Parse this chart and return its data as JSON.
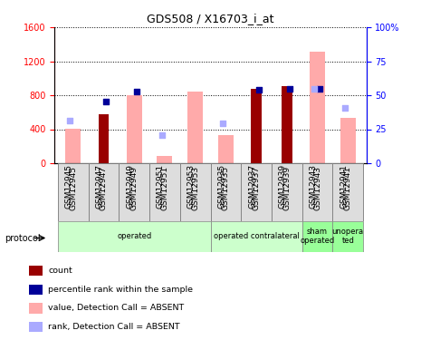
{
  "title": "GDS508 / X16703_i_at",
  "samples": [
    "GSM12945",
    "GSM12947",
    "GSM12949",
    "GSM12951",
    "GSM12953",
    "GSM12935",
    "GSM12937",
    "GSM12939",
    "GSM12943",
    "GSM12941"
  ],
  "count_values": [
    null,
    580,
    null,
    null,
    null,
    null,
    870,
    910,
    null,
    null
  ],
  "percentile_values": [
    null,
    730,
    840,
    null,
    null,
    null,
    860,
    880,
    870,
    null
  ],
  "absent_value": [
    410,
    null,
    800,
    90,
    840,
    330,
    null,
    null,
    1310,
    530
  ],
  "absent_rank": [
    500,
    null,
    null,
    330,
    null,
    470,
    null,
    null,
    870,
    650
  ],
  "proto_groups": [
    {
      "start": 0,
      "end": 4,
      "label": "operated",
      "color": "#ccffcc"
    },
    {
      "start": 5,
      "end": 7,
      "label": "operated contralateral",
      "color": "#ccffcc"
    },
    {
      "start": 8,
      "end": 8,
      "label": "sham\noperated",
      "color": "#99ff99"
    },
    {
      "start": 9,
      "end": 9,
      "label": "unopera\nted",
      "color": "#99ff99"
    }
  ],
  "ylim_left": [
    0,
    1600
  ],
  "ylim_right": [
    0,
    100
  ],
  "left_ticks": [
    0,
    400,
    800,
    1200,
    1600
  ],
  "right_ticks": [
    0,
    25,
    50,
    75,
    100
  ],
  "right_tick_labels": [
    "0",
    "25",
    "50",
    "75",
    "100%"
  ],
  "bar_width": 0.35,
  "absent_bar_width": 0.5,
  "count_color": "#990000",
  "percentile_color": "#000099",
  "absent_value_color": "#ffaaaa",
  "absent_rank_color": "#aaaaff",
  "bg_color": "#ffffff",
  "legend_items": [
    {
      "label": "count",
      "color": "#990000"
    },
    {
      "label": "percentile rank within the sample",
      "color": "#000099"
    },
    {
      "label": "value, Detection Call = ABSENT",
      "color": "#ffaaaa"
    },
    {
      "label": "rank, Detection Call = ABSENT",
      "color": "#aaaaff"
    }
  ]
}
